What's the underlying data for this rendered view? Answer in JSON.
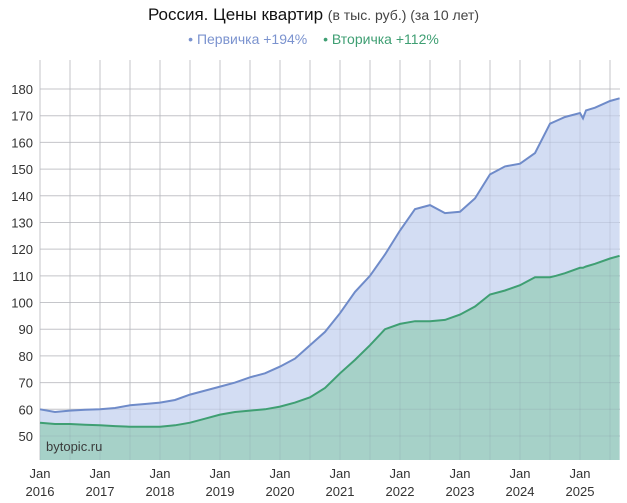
{
  "header": {
    "title": "Россия. Цены квартир",
    "subtitle": "(в тыс. руб.) (за 10 лет)"
  },
  "legend": [
    {
      "label": "• Первичка +194%",
      "color": "#7b93cf"
    },
    {
      "label": "• Вторичка +112%",
      "color": "#3f9f73"
    }
  ],
  "watermark": "bytopic.ru",
  "colors": {
    "primary_line": "#6f8bc9",
    "primary_fill": "#d3ddf3",
    "secondary_line": "#3f9f73",
    "secondary_fill": "#a6d1c8",
    "grid": "#d6d6d6"
  },
  "chart_data": {
    "type": "area",
    "title": "Россия. Цены квартир (в тыс. руб.) (за 10 лет)",
    "xlabel": "",
    "ylabel": "",
    "ylim": [
      42,
      185
    ],
    "grid": true,
    "legend_position": "top",
    "y_ticks": [
      50,
      60,
      70,
      80,
      90,
      100,
      110,
      120,
      130,
      140,
      150,
      160,
      170,
      180
    ],
    "x_ticks": [
      {
        "label": [
          "Jan",
          "2016"
        ],
        "x": 2016
      },
      {
        "label": [
          "Jan",
          "2017"
        ],
        "x": 2017
      },
      {
        "label": [
          "Jan",
          "2018"
        ],
        "x": 2018
      },
      {
        "label": [
          "Jan",
          "2019"
        ],
        "x": 2019
      },
      {
        "label": [
          "Jan",
          "2020"
        ],
        "x": 2020
      },
      {
        "label": [
          "Jan",
          "2021"
        ],
        "x": 2021
      },
      {
        "label": [
          "Jan",
          "2022"
        ],
        "x": 2022
      },
      {
        "label": [
          "Jan",
          "2023"
        ],
        "x": 2023
      },
      {
        "label": [
          "Jan",
          "2024"
        ],
        "x": 2024
      },
      {
        "label": [
          "Jan",
          "2025"
        ],
        "x": 2025
      }
    ],
    "x": [
      2016.0,
      2016.25,
      2016.5,
      2016.75,
      2017.0,
      2017.25,
      2017.5,
      2017.75,
      2018.0,
      2018.25,
      2018.5,
      2018.75,
      2019.0,
      2019.25,
      2019.5,
      2019.75,
      2020.0,
      2020.25,
      2020.5,
      2020.75,
      2021.0,
      2021.25,
      2021.5,
      2021.75,
      2022.0,
      2022.25,
      2022.5,
      2022.75,
      2023.0,
      2023.25,
      2023.5,
      2023.75,
      2024.0,
      2024.25,
      2024.5,
      2024.6,
      2024.75,
      2025.0,
      2025.05,
      2025.1,
      2025.25,
      2025.5,
      2025.66
    ],
    "series": [
      {
        "name": "Первичка",
        "change": "+194%",
        "values": [
          60,
          59,
          59.5,
          59.8,
          60,
          60.5,
          61.5,
          62,
          62.5,
          63.5,
          65.5,
          67,
          68.5,
          70,
          72,
          73.5,
          76,
          79,
          84,
          89,
          96,
          104,
          110,
          118,
          127,
          135,
          136.5,
          133.5,
          134,
          139,
          148,
          151,
          152,
          156,
          167,
          168,
          169.5,
          171,
          169,
          172,
          173,
          175.5,
          176.5
        ]
      },
      {
        "name": "Вторичка",
        "change": "+112%",
        "values": [
          55,
          54.5,
          54.5,
          54.2,
          54,
          53.7,
          53.5,
          53.5,
          53.5,
          54,
          55,
          56.5,
          58,
          59,
          59.5,
          60,
          61,
          62.5,
          64.5,
          68,
          73.5,
          78.5,
          84,
          90,
          92,
          93,
          93,
          93.5,
          95.5,
          98.5,
          103,
          104.5,
          106.5,
          109.5,
          109.5,
          110,
          111,
          113,
          113,
          113.5,
          114.5,
          116.5,
          117.5
        ]
      }
    ]
  }
}
